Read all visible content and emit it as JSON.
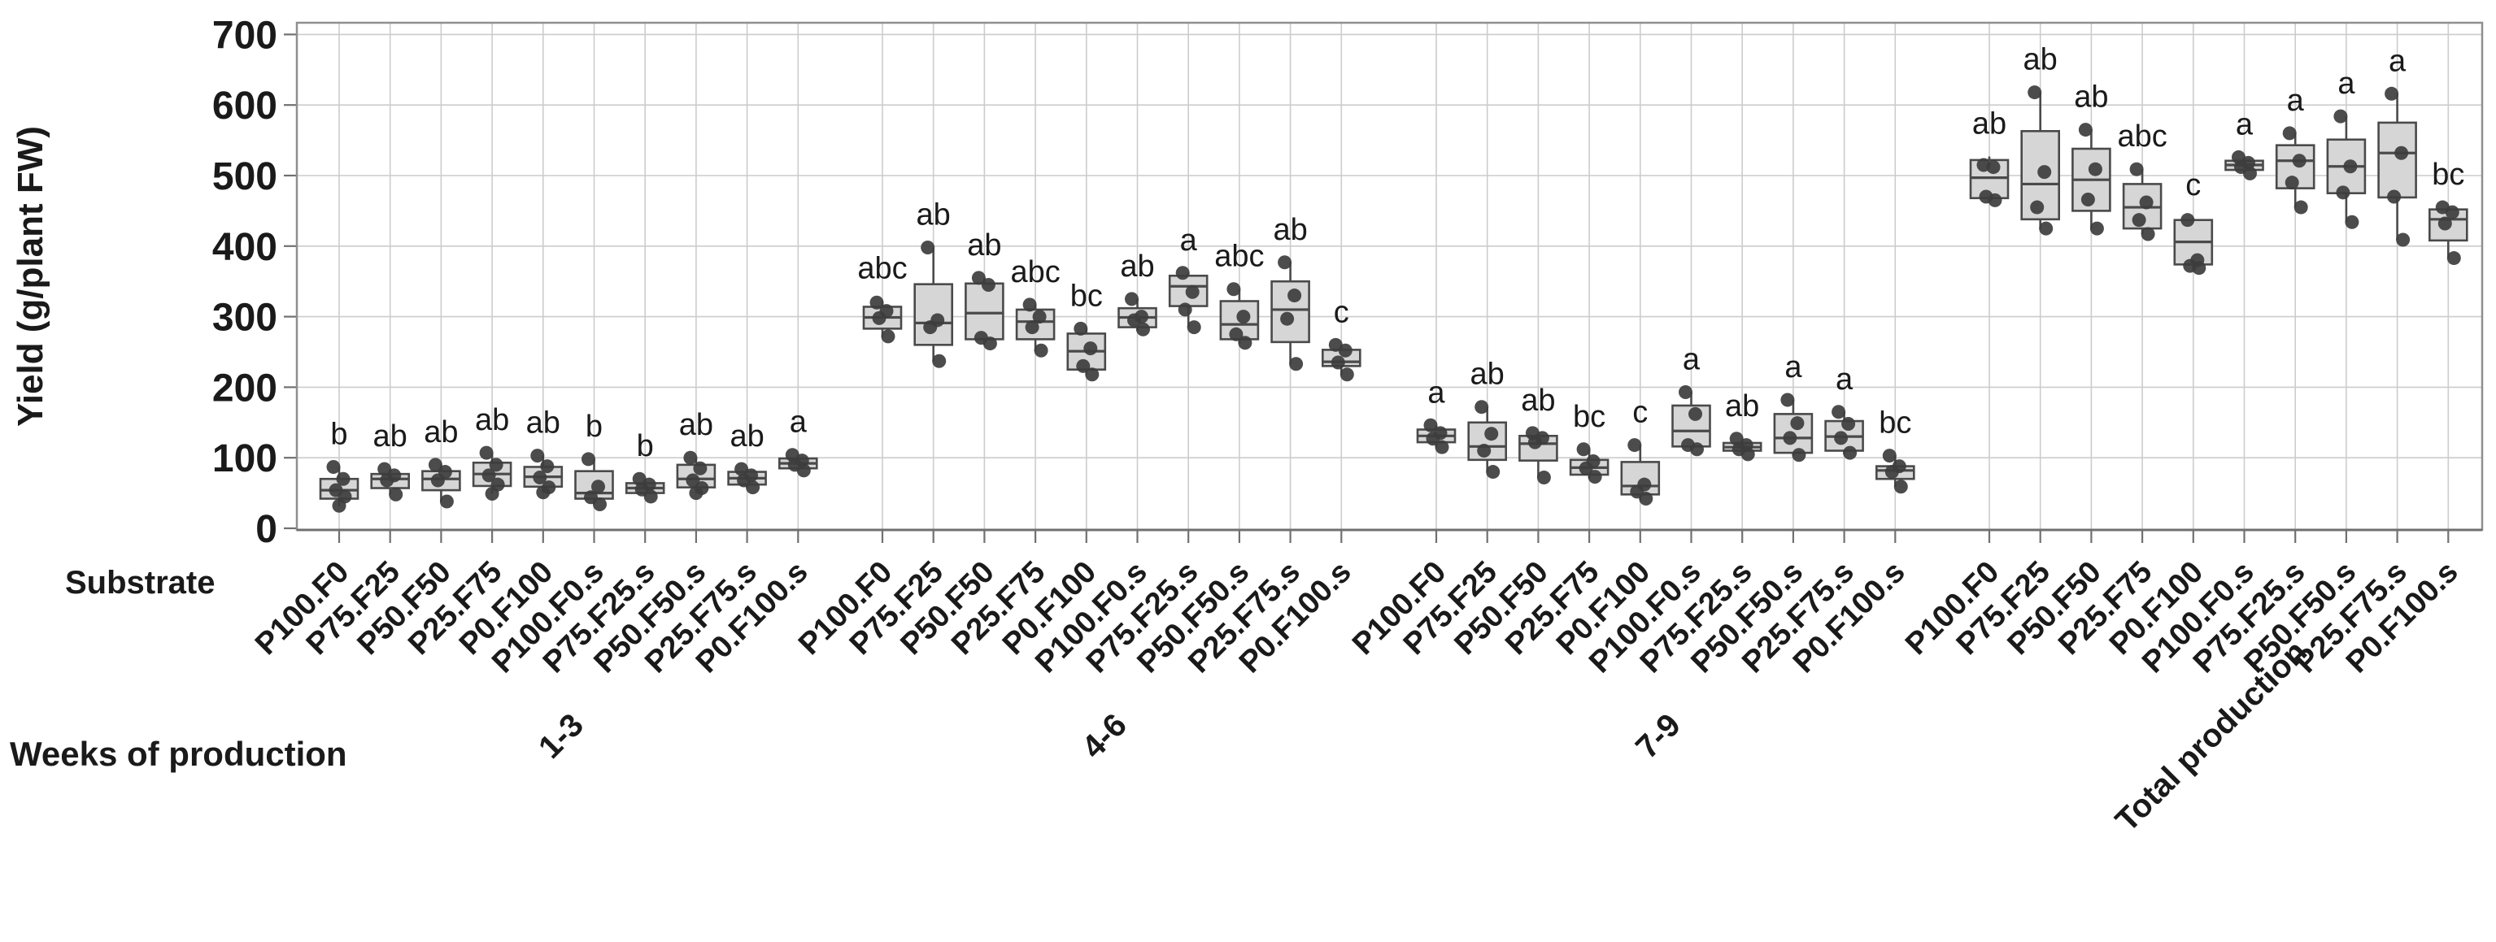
{
  "chart_data": {
    "type": "boxplot",
    "title": "",
    "ylabel": "Yield (g/plant FW)",
    "xlabel": "Substrate",
    "group_axis_label": "Weeks of production",
    "ylim": [
      0,
      700
    ],
    "ytick_step": 100,
    "yticks": [
      0,
      100,
      200,
      300,
      400,
      500,
      600,
      700
    ],
    "grid": true,
    "legend": "none",
    "colors": {
      "box_fill": "#d6d6d6",
      "box_stroke": "#4a4a4a",
      "point": "#3d3d3d",
      "gridline": "#cccccc",
      "border": "#8f8f8f",
      "axis": "#707070",
      "text": "#1a1a1a"
    },
    "substrates": [
      "P100.F0",
      "P75.F25",
      "P50.F50",
      "P25.F75",
      "P0.F100",
      "P100.F0.s",
      "P75.F25.s",
      "P50.F50.s",
      "P25.F75.s",
      "P0.F100.s"
    ],
    "groups": [
      {
        "label": "1-3",
        "boxes": [
          {
            "substrate": "P100.F0",
            "letter": "b",
            "whisker_low": 32,
            "q1": 42,
            "median": 54,
            "q3": 70,
            "whisker_high": 87,
            "points": [
              87,
              70,
              54,
              45,
              32
            ]
          },
          {
            "substrate": "P75.F25",
            "letter": "ab",
            "whisker_low": 48,
            "q1": 57,
            "median": 70,
            "q3": 77,
            "whisker_high": 84,
            "points": [
              84,
              75,
              68,
              48
            ]
          },
          {
            "substrate": "P50.F50",
            "letter": "ab",
            "whisker_low": 38,
            "q1": 54,
            "median": 70,
            "q3": 81,
            "whisker_high": 90,
            "points": [
              90,
              80,
              68,
              38
            ]
          },
          {
            "substrate": "P25.F75",
            "letter": "ab",
            "whisker_low": 49,
            "q1": 60,
            "median": 77,
            "q3": 93,
            "whisker_high": 107,
            "points": [
              107,
              90,
              75,
              62,
              49
            ]
          },
          {
            "substrate": "P0.F100",
            "letter": "ab",
            "whisker_low": 51,
            "q1": 59,
            "median": 73,
            "q3": 87,
            "whisker_high": 103,
            "points": [
              103,
              88,
              72,
              58,
              51
            ]
          },
          {
            "substrate": "P100.F0.s",
            "letter": "b",
            "whisker_low": 34,
            "q1": 42,
            "median": 50,
            "q3": 81,
            "whisker_high": 98,
            "points": [
              98,
              59,
              44,
              34
            ]
          },
          {
            "substrate": "P75.F25.s",
            "letter": "b",
            "whisker_low": 45,
            "q1": 50,
            "median": 57,
            "q3": 64,
            "whisker_high": 70,
            "points": [
              70,
              62,
              55,
              45
            ]
          },
          {
            "substrate": "P50.F50.s",
            "letter": "ab",
            "whisker_low": 50,
            "q1": 58,
            "median": 70,
            "q3": 90,
            "whisker_high": 100,
            "points": [
              100,
              85,
              68,
              57,
              50
            ]
          },
          {
            "substrate": "P25.F75.s",
            "letter": "ab",
            "whisker_low": 58,
            "q1": 62,
            "median": 71,
            "q3": 80,
            "whisker_high": 84,
            "points": [
              84,
              75,
              68,
              58
            ]
          },
          {
            "substrate": "P0.F100.s",
            "letter": "a",
            "whisker_low": 82,
            "q1": 85,
            "median": 92,
            "q3": 99,
            "whisker_high": 104,
            "points": [
              104,
              96,
              90,
              82
            ]
          }
        ]
      },
      {
        "label": "4-6",
        "boxes": [
          {
            "substrate": "P100.F0",
            "letter": "abc",
            "whisker_low": 271,
            "q1": 283,
            "median": 299,
            "q3": 314,
            "whisker_high": 322,
            "points": [
              320,
              308,
              298,
              272
            ]
          },
          {
            "substrate": "P75.F25",
            "letter": "ab",
            "whisker_low": 237,
            "q1": 260,
            "median": 291,
            "q3": 346,
            "whisker_high": 398,
            "points": [
              398,
              295,
              285,
              237
            ]
          },
          {
            "substrate": "P50.F50",
            "letter": "ab",
            "whisker_low": 260,
            "q1": 268,
            "median": 305,
            "q3": 347,
            "whisker_high": 355,
            "points": [
              355,
              345,
              270,
              262
            ]
          },
          {
            "substrate": "P25.F75",
            "letter": "abc",
            "whisker_low": 251,
            "q1": 268,
            "median": 293,
            "q3": 310,
            "whisker_high": 317,
            "points": [
              317,
              300,
              285,
              252
            ]
          },
          {
            "substrate": "P0.F100",
            "letter": "bc",
            "whisker_low": 218,
            "q1": 225,
            "median": 251,
            "q3": 276,
            "whisker_high": 283,
            "points": [
              283,
              255,
              230,
              218
            ]
          },
          {
            "substrate": "P100.F0.s",
            "letter": "ab",
            "whisker_low": 280,
            "q1": 285,
            "median": 299,
            "q3": 312,
            "whisker_high": 325,
            "points": [
              325,
              300,
              295,
              282
            ]
          },
          {
            "substrate": "P75.F25.s",
            "letter": "a",
            "whisker_low": 285,
            "q1": 315,
            "median": 343,
            "q3": 358,
            "whisker_high": 362,
            "points": [
              362,
              335,
              310,
              285
            ]
          },
          {
            "substrate": "P50.F50.s",
            "letter": "abc",
            "whisker_low": 262,
            "q1": 268,
            "median": 289,
            "q3": 322,
            "whisker_high": 339,
            "points": [
              339,
              300,
              275,
              263
            ]
          },
          {
            "substrate": "P25.F75.s",
            "letter": "ab",
            "whisker_low": 233,
            "q1": 264,
            "median": 310,
            "q3": 350,
            "whisker_high": 377,
            "points": [
              377,
              330,
              297,
              233
            ]
          },
          {
            "substrate": "P0.F100.s",
            "letter": "c",
            "whisker_low": 218,
            "q1": 230,
            "median": 236,
            "q3": 253,
            "whisker_high": 260,
            "points": [
              260,
              252,
              235,
              218
            ]
          }
        ]
      },
      {
        "label": "7-9",
        "boxes": [
          {
            "substrate": "P100.F0",
            "letter": "a",
            "whisker_low": 115,
            "q1": 122,
            "median": 131,
            "q3": 140,
            "whisker_high": 146,
            "points": [
              146,
              135,
              127,
              115
            ]
          },
          {
            "substrate": "P75.F25",
            "letter": "ab",
            "whisker_low": 80,
            "q1": 97,
            "median": 116,
            "q3": 150,
            "whisker_high": 172,
            "points": [
              172,
              134,
              110,
              80
            ]
          },
          {
            "substrate": "P50.F50",
            "letter": "ab",
            "whisker_low": 72,
            "q1": 96,
            "median": 120,
            "q3": 131,
            "whisker_high": 135,
            "points": [
              135,
              128,
              122,
              72
            ]
          },
          {
            "substrate": "P25.F75",
            "letter": "bc",
            "whisker_low": 71,
            "q1": 76,
            "median": 86,
            "q3": 97,
            "whisker_high": 112,
            "points": [
              112,
              95,
              85,
              73
            ]
          },
          {
            "substrate": "P0.F100",
            "letter": "c",
            "whisker_low": 40,
            "q1": 48,
            "median": 60,
            "q3": 94,
            "whisker_high": 118,
            "points": [
              118,
              62,
              52,
              42
            ]
          },
          {
            "substrate": "P100.F0.s",
            "letter": "a",
            "whisker_low": 112,
            "q1": 116,
            "median": 138,
            "q3": 174,
            "whisker_high": 193,
            "points": [
              193,
              162,
              118,
              112
            ]
          },
          {
            "substrate": "P75.F25.s",
            "letter": "ab",
            "whisker_low": 105,
            "q1": 110,
            "median": 115,
            "q3": 121,
            "whisker_high": 127,
            "points": [
              127,
              118,
              112,
              105
            ]
          },
          {
            "substrate": "P50.F50.s",
            "letter": "a",
            "whisker_low": 103,
            "q1": 107,
            "median": 128,
            "q3": 162,
            "whisker_high": 182,
            "points": [
              182,
              149,
              128,
              104
            ]
          },
          {
            "substrate": "P25.F75.s",
            "letter": "a",
            "whisker_low": 105,
            "q1": 110,
            "median": 130,
            "q3": 152,
            "whisker_high": 165,
            "points": [
              165,
              148,
              128,
              107
            ]
          },
          {
            "substrate": "P0.F100.s",
            "letter": "bc",
            "whisker_low": 59,
            "q1": 70,
            "median": 82,
            "q3": 88,
            "whisker_high": 103,
            "points": [
              103,
              88,
              80,
              59
            ]
          }
        ]
      },
      {
        "label": "Total production",
        "boxes": [
          {
            "substrate": "P100.F0",
            "letter": "ab",
            "whisker_low": 462,
            "q1": 468,
            "median": 497,
            "q3": 522,
            "whisker_high": 527,
            "points": [
              515,
              512,
              470,
              465
            ]
          },
          {
            "substrate": "P75.F25",
            "letter": "ab",
            "whisker_low": 425,
            "q1": 438,
            "median": 488,
            "q3": 563,
            "whisker_high": 618,
            "points": [
              618,
              505,
              455,
              425
            ]
          },
          {
            "substrate": "P50.F50",
            "letter": "ab",
            "whisker_low": 425,
            "q1": 450,
            "median": 494,
            "q3": 538,
            "whisker_high": 565,
            "points": [
              565,
              509,
              466,
              425
            ]
          },
          {
            "substrate": "P25.F75",
            "letter": "abc",
            "whisker_low": 417,
            "q1": 425,
            "median": 455,
            "q3": 488,
            "whisker_high": 509,
            "points": [
              509,
              462,
              437,
              417
            ]
          },
          {
            "substrate": "P0.F100",
            "letter": "c",
            "whisker_low": 369,
            "q1": 374,
            "median": 406,
            "q3": 437,
            "whisker_high": 440,
            "points": [
              437,
              380,
              372,
              369
            ]
          },
          {
            "substrate": "P100.F0.s",
            "letter": "a",
            "whisker_low": 503,
            "q1": 508,
            "median": 515,
            "q3": 521,
            "whisker_high": 526,
            "points": [
              526,
              518,
              512,
              503
            ]
          },
          {
            "substrate": "P75.F25.s",
            "letter": "a",
            "whisker_low": 455,
            "q1": 482,
            "median": 521,
            "q3": 543,
            "whisker_high": 560,
            "points": [
              560,
              521,
              490,
              455
            ]
          },
          {
            "substrate": "P50.F50.s",
            "letter": "a",
            "whisker_low": 434,
            "q1": 475,
            "median": 513,
            "q3": 551,
            "whisker_high": 584,
            "points": [
              584,
              513,
              476,
              434
            ]
          },
          {
            "substrate": "P25.F75.s",
            "letter": "a",
            "whisker_low": 409,
            "q1": 469,
            "median": 532,
            "q3": 575,
            "whisker_high": 616,
            "points": [
              616,
              532,
              470,
              409
            ]
          },
          {
            "substrate": "P0.F100.s",
            "letter": "bc",
            "whisker_low": 383,
            "q1": 408,
            "median": 438,
            "q3": 452,
            "whisker_high": 455,
            "points": [
              455,
              448,
              432,
              383
            ]
          }
        ]
      }
    ]
  }
}
